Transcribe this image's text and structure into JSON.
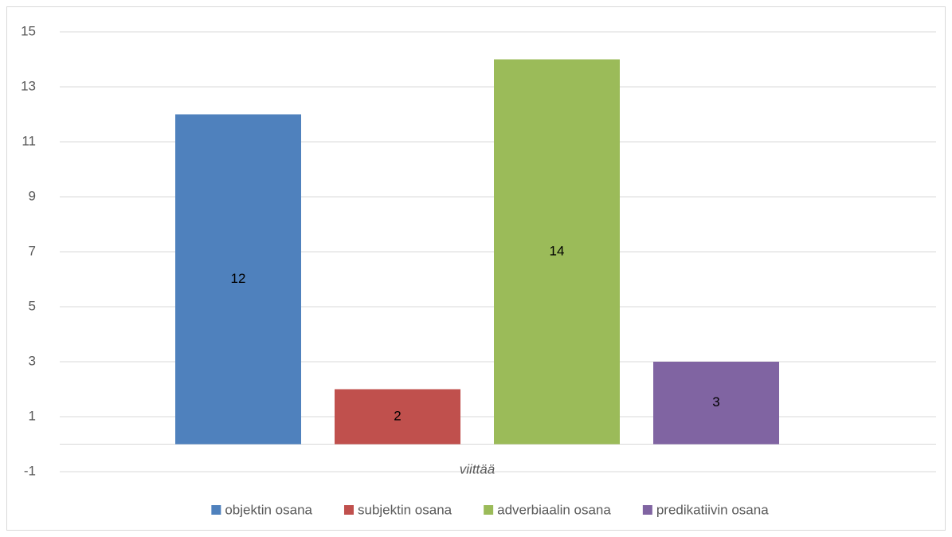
{
  "chart_data": {
    "type": "bar",
    "categories": [
      "viittää"
    ],
    "series": [
      {
        "name": "objektin osana",
        "color": "#4f81bd",
        "values": [
          12
        ]
      },
      {
        "name": "subjektin osana",
        "color": "#c0504d",
        "values": [
          2
        ]
      },
      {
        "name": "adverbiaalin osana",
        "color": "#9bbb59",
        "values": [
          14
        ]
      },
      {
        "name": "predikatiivin osana",
        "color": "#8064a2",
        "values": [
          3
        ]
      }
    ],
    "ylim": [
      -1,
      15
    ],
    "yticks": [
      -1,
      1,
      3,
      5,
      7,
      9,
      11,
      13,
      15
    ],
    "grid": true,
    "legend": "bottom",
    "data_labels": true
  }
}
